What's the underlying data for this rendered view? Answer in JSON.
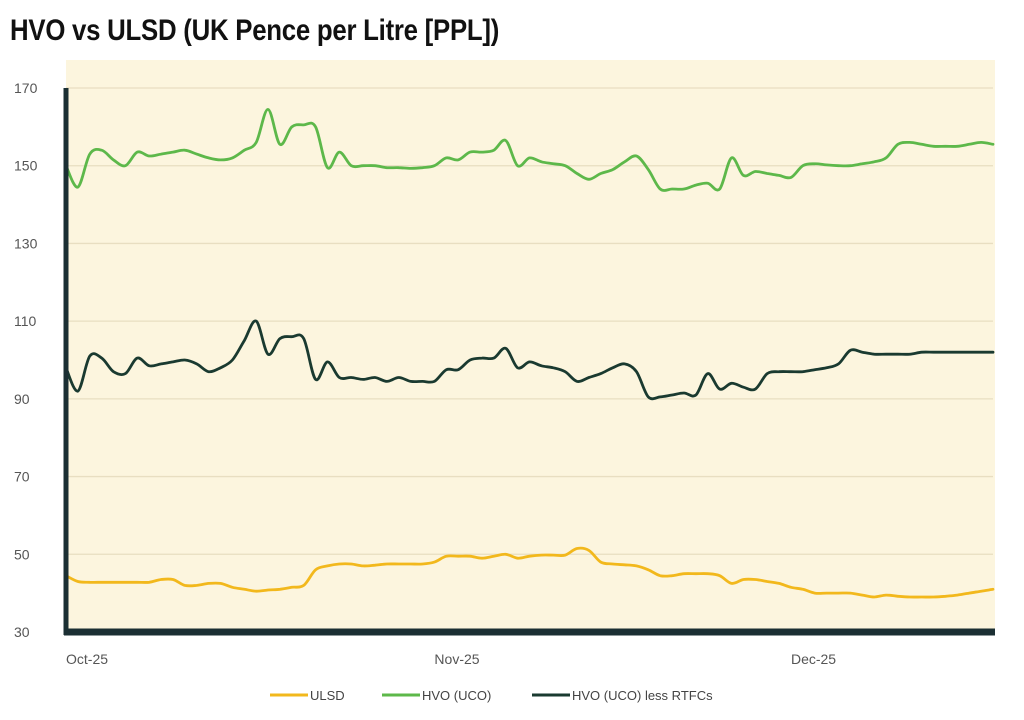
{
  "chart_data": {
    "type": "line",
    "title": "HVO vs ULSD (UK Pence per Litre [PPL])",
    "xlabel": "",
    "ylabel": "",
    "ylim": [
      30,
      170
    ],
    "yticks": [
      30,
      50,
      70,
      90,
      110,
      130,
      150,
      170
    ],
    "xlim": [
      0,
      78
    ],
    "xticks": [
      {
        "label": "Oct-25",
        "x": 0
      },
      {
        "label": "Nov-25",
        "x": 31
      },
      {
        "label": "Dec-25",
        "x": 61
      }
    ],
    "grid": true,
    "legend_position": "bottom-center",
    "colors": {
      "background": "#fcf5de",
      "grid": "#e8dec1",
      "axis": "#1b2f33"
    },
    "series": [
      {
        "name": "ULSD",
        "color": "#f2b81c",
        "x": [
          0,
          1,
          2,
          3,
          4,
          5,
          6,
          7,
          8,
          9,
          10,
          11,
          12,
          13,
          14,
          15,
          16,
          17,
          18,
          19,
          20,
          21,
          22,
          23,
          24,
          25,
          26,
          27,
          28,
          29,
          30,
          31,
          32,
          33,
          34,
          35,
          36,
          37,
          38,
          39,
          40,
          41,
          42,
          43,
          44,
          45,
          46,
          47,
          48,
          49,
          50,
          51,
          52,
          53,
          54,
          55,
          56,
          57,
          58,
          59,
          60,
          61,
          62,
          63,
          64,
          65,
          66,
          67,
          68,
          69,
          70,
          71,
          72,
          73,
          74,
          75,
          76,
          77,
          78
        ],
        "values": [
          44.5,
          43,
          42.8,
          42.8,
          42.8,
          42.8,
          42.8,
          42.8,
          43.5,
          43.5,
          42,
          42,
          42.5,
          42.5,
          41.5,
          41,
          40.5,
          40.8,
          41,
          41.5,
          42,
          46,
          47,
          47.5,
          47.5,
          47,
          47.2,
          47.5,
          47.5,
          47.5,
          47.5,
          48,
          49.5,
          49.5,
          49.5,
          49,
          49.5,
          50,
          49,
          49.5,
          49.8,
          49.8,
          49.8,
          51.5,
          51,
          48,
          47.5,
          47.3,
          47,
          46,
          44.5,
          44.5,
          45,
          45,
          45,
          44.5,
          42.5,
          43.5,
          43.5,
          43,
          42.5,
          41.5,
          41,
          40,
          40,
          40,
          40,
          39.5,
          39,
          39.5,
          39.2,
          39,
          39,
          39,
          39.2,
          39.5,
          40,
          40.5,
          41
        ]
      },
      {
        "name": "HVO (UCO)",
        "color": "#5db84a",
        "x": [
          0,
          1,
          2,
          3,
          4,
          5,
          6,
          7,
          8,
          9,
          10,
          11,
          12,
          13,
          14,
          15,
          16,
          17,
          18,
          19,
          20,
          21,
          22,
          23,
          24,
          25,
          26,
          27,
          28,
          29,
          30,
          31,
          32,
          33,
          34,
          35,
          36,
          37,
          38,
          39,
          40,
          41,
          42,
          43,
          44,
          45,
          46,
          47,
          48,
          49,
          50,
          51,
          52,
          53,
          54,
          55,
          56,
          57,
          58,
          59,
          60,
          61,
          62,
          63,
          64,
          65,
          66,
          67,
          68,
          69,
          70,
          71,
          72,
          73,
          74,
          75,
          76,
          77,
          78
        ],
        "values": [
          150,
          144.5,
          153,
          154,
          151.5,
          150,
          153.5,
          152.5,
          153,
          153.5,
          154,
          153,
          152,
          151.5,
          152,
          154,
          156,
          164.5,
          155.5,
          160,
          160.5,
          160,
          149.5,
          153.5,
          150,
          150,
          150,
          149.5,
          149.5,
          149.3,
          149.5,
          150,
          152,
          151.5,
          153.5,
          153.5,
          154,
          156.5,
          150,
          152,
          151,
          150.5,
          150,
          148,
          146.5,
          148,
          149,
          151,
          152.5,
          149,
          144,
          144,
          144,
          145,
          145.5,
          144,
          152,
          147.5,
          148.5,
          148,
          147.5,
          147,
          150,
          150.5,
          150.2,
          150,
          150,
          150.5,
          151,
          152,
          155.5,
          156,
          155.5,
          155,
          155,
          155,
          155.5,
          156,
          155.5
        ]
      },
      {
        "name": "HVO (UCO) less RTFCs",
        "color": "#1a3a30",
        "x": [
          0,
          1,
          2,
          3,
          4,
          5,
          6,
          7,
          8,
          9,
          10,
          11,
          12,
          13,
          14,
          15,
          16,
          17,
          18,
          19,
          20,
          21,
          22,
          23,
          24,
          25,
          26,
          27,
          28,
          29,
          30,
          31,
          32,
          33,
          34,
          35,
          36,
          37,
          38,
          39,
          40,
          41,
          42,
          43,
          44,
          45,
          46,
          47,
          48,
          49,
          50,
          51,
          52,
          53,
          54,
          55,
          56,
          57,
          58,
          59,
          60,
          61,
          62,
          63,
          64,
          65,
          66,
          67,
          68,
          69,
          70,
          71,
          72,
          73,
          74,
          75,
          76,
          77,
          78
        ],
        "values": [
          98,
          92,
          101,
          100.5,
          97,
          96.5,
          100.5,
          98.5,
          99,
          99.5,
          100,
          99,
          97,
          98,
          100,
          105,
          110,
          101.5,
          105.5,
          106,
          105.5,
          95,
          99.5,
          95.5,
          95.5,
          95,
          95.5,
          94.5,
          95.5,
          94.5,
          94.5,
          94.5,
          97.5,
          97.5,
          100,
          100.5,
          100.5,
          103,
          98,
          99.5,
          98.5,
          98,
          97,
          94.5,
          95.5,
          96.5,
          98,
          99,
          97,
          90.5,
          90.5,
          91,
          91.5,
          91,
          96.5,
          92.5,
          94,
          93,
          92.5,
          96.5,
          97,
          97,
          97,
          97.5,
          98,
          99,
          102.5,
          102,
          101.5,
          101.5,
          101.5,
          101.5,
          102,
          102,
          102,
          102,
          102,
          102,
          102
        ]
      }
    ]
  }
}
